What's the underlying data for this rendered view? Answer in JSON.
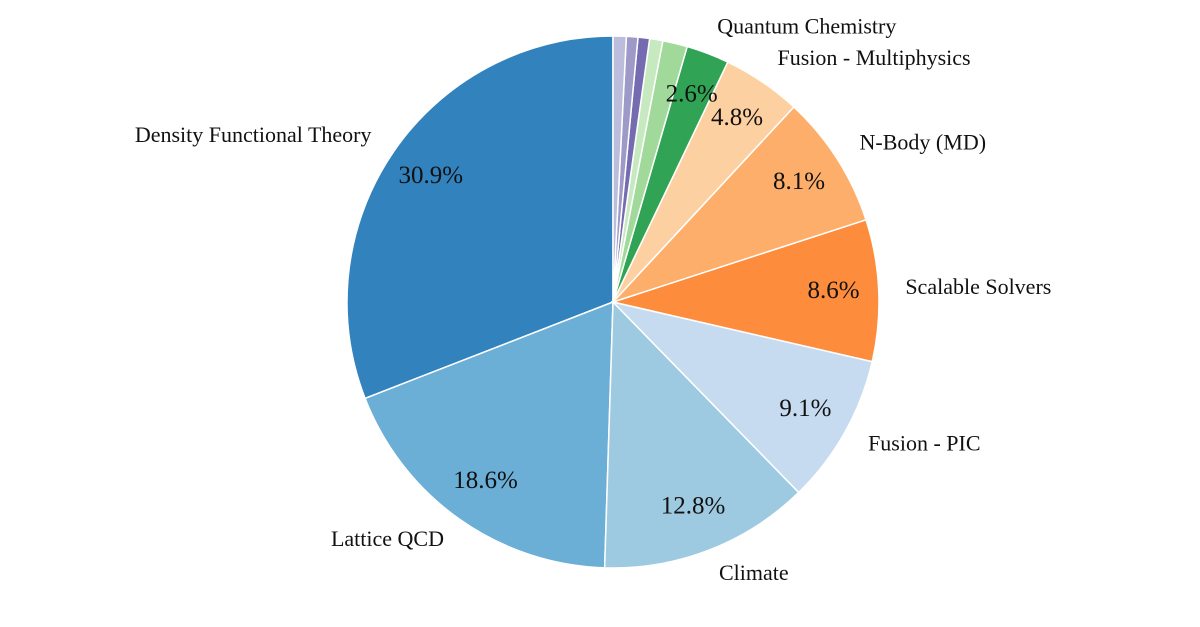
{
  "chart_data": {
    "type": "pie",
    "categories": [
      "Density Functional Theory",
      "Lattice QCD",
      "Climate",
      "Fusion - PIC",
      "Scalable Solvers",
      "N-Body (MD)",
      "Fusion - Multiphysics",
      "Quantum Chemistry",
      null,
      null,
      null,
      null,
      null
    ],
    "values": [
      30.9,
      18.6,
      12.8,
      9.1,
      8.6,
      8.1,
      4.8,
      2.6,
      1.5,
      0.8,
      0.7,
      0.7,
      0.8
    ],
    "value_labels": [
      "30.9%",
      "18.6%",
      "12.8%",
      "9.1%",
      "8.6%",
      "8.1%",
      "4.8%",
      "2.6%",
      null,
      null,
      null,
      null,
      null
    ],
    "colors": [
      "#3182bd",
      "#6baed6",
      "#9ecae1",
      "#c6dbef",
      "#fd8d3c",
      "#fdae6b",
      "#fdd0a2",
      "#31a354",
      "#a1d99b",
      "#c7e9c0",
      "#756bb1",
      "#9e9ac8",
      "#bcbddc"
    ]
  }
}
